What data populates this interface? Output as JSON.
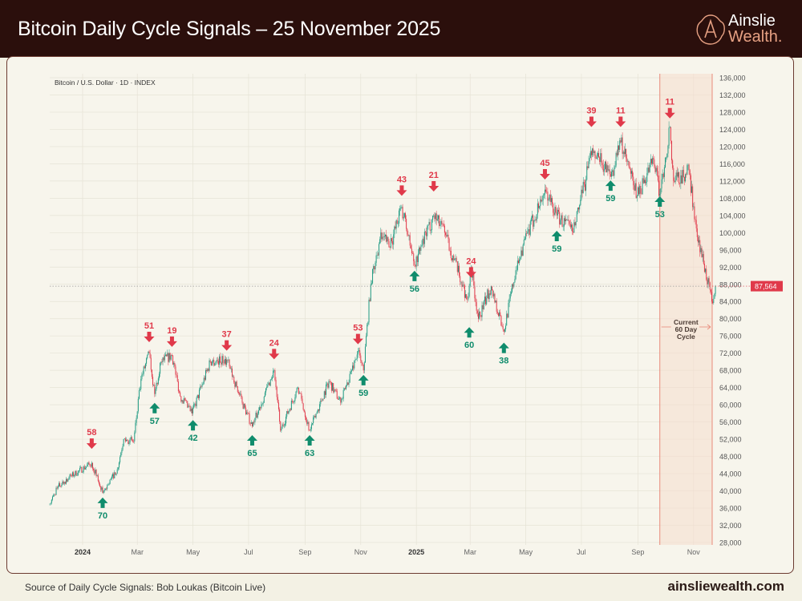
{
  "header": {
    "title": "Bitcoin Daily Cycle Signals – 25 November 2025"
  },
  "logo": {
    "line1": "Ainslie",
    "line2": "Wealth."
  },
  "footer": {
    "source": "Source of Daily Cycle Signals: Bob Loukas (Bitcoin Live)",
    "site": "ainsliewealth.com"
  },
  "chart_data": {
    "type": "candlestick",
    "symbol_label": "Bitcoin / U.S. Dollar · 1D · INDEX",
    "ylim": [
      28000,
      136000
    ],
    "y_ticks": [
      "136,000",
      "132,000",
      "128,000",
      "124,000",
      "120,000",
      "116,000",
      "112,000",
      "108,000",
      "104,000",
      "100,000",
      "96,000",
      "92,000",
      "88,000",
      "84,000",
      "80,000",
      "76,000",
      "72,000",
      "68,000",
      "64,000",
      "60,000",
      "56,000",
      "52,000",
      "48,000",
      "44,000",
      "40,000",
      "36,000",
      "32,000",
      "28,000"
    ],
    "x_ticks": [
      {
        "date": "2024-01-01",
        "label": "2024",
        "bold": true
      },
      {
        "date": "2024-03-01",
        "label": "Mar"
      },
      {
        "date": "2024-05-01",
        "label": "May"
      },
      {
        "date": "2024-07-01",
        "label": "Jul"
      },
      {
        "date": "2024-09-01",
        "label": "Sep"
      },
      {
        "date": "2024-11-01",
        "label": "Nov"
      },
      {
        "date": "2025-01-01",
        "label": "2025",
        "bold": true
      },
      {
        "date": "2025-03-01",
        "label": "Mar"
      },
      {
        "date": "2025-05-01",
        "label": "May"
      },
      {
        "date": "2025-07-01",
        "label": "Jul"
      },
      {
        "date": "2025-09-01",
        "label": "Sep"
      },
      {
        "date": "2025-11-01",
        "label": "Nov"
      }
    ],
    "x_range": [
      "2023-11-26",
      "2025-11-25"
    ],
    "grid": true,
    "colors": {
      "up": "#1f9a82",
      "down": "#e0394a",
      "signal_high": "#e0394a",
      "signal_low": "#0f8c6c",
      "shade": "#f5dccd"
    },
    "price_path": [
      [
        "2023-11-26",
        37000
      ],
      [
        "2023-12-05",
        41000
      ],
      [
        "2023-12-20",
        43500
      ],
      [
        "2024-01-11",
        46500
      ],
      [
        "2024-01-23",
        39500
      ],
      [
        "2024-02-08",
        45000
      ],
      [
        "2024-02-15",
        52000
      ],
      [
        "2024-02-26",
        51500
      ],
      [
        "2024-03-05",
        66000
      ],
      [
        "2024-03-14",
        72000
      ],
      [
        "2024-03-20",
        62500
      ],
      [
        "2024-03-27",
        70000
      ],
      [
        "2024-04-08",
        71500
      ],
      [
        "2024-04-17",
        62000
      ],
      [
        "2024-04-30",
        58000
      ],
      [
        "2024-05-20",
        70000
      ],
      [
        "2024-06-07",
        70500
      ],
      [
        "2024-06-24",
        60500
      ],
      [
        "2024-07-05",
        55000
      ],
      [
        "2024-07-29",
        68000
      ],
      [
        "2024-08-05",
        54000
      ],
      [
        "2024-08-24",
        64000
      ],
      [
        "2024-09-06",
        54000
      ],
      [
        "2024-09-27",
        65500
      ],
      [
        "2024-10-10",
        60500
      ],
      [
        "2024-10-29",
        72500
      ],
      [
        "2024-11-04",
        68000
      ],
      [
        "2024-11-12",
        88000
      ],
      [
        "2024-11-22",
        98500
      ],
      [
        "2024-12-05",
        98000
      ],
      [
        "2024-12-16",
        106000
      ],
      [
        "2024-12-30",
        92500
      ],
      [
        "2025-01-20",
        104000
      ],
      [
        "2025-02-01",
        100000
      ],
      [
        "2025-02-26",
        84500
      ],
      [
        "2025-03-02",
        92000
      ],
      [
        "2025-03-10",
        80000
      ],
      [
        "2025-03-24",
        87500
      ],
      [
        "2025-04-07",
        77000
      ],
      [
        "2025-04-22",
        93500
      ],
      [
        "2025-05-22",
        110000
      ],
      [
        "2025-06-04",
        104000
      ],
      [
        "2025-06-22",
        100000
      ],
      [
        "2025-07-12",
        118000
      ],
      [
        "2025-07-20",
        117500
      ],
      [
        "2025-08-02",
        113000
      ],
      [
        "2025-08-13",
        121000
      ],
      [
        "2025-08-31",
        108500
      ],
      [
        "2025-09-18",
        117000
      ],
      [
        "2025-09-25",
        109000
      ],
      [
        "2025-10-06",
        124500
      ],
      [
        "2025-10-10",
        112000
      ],
      [
        "2025-10-27",
        114500
      ],
      [
        "2025-11-04",
        101000
      ],
      [
        "2025-11-21",
        84000
      ],
      [
        "2025-11-25",
        87564
      ]
    ],
    "last_price": 87564,
    "last_price_label": "87,564",
    "signals": [
      {
        "type": "high",
        "label": "58",
        "date": "2024-01-11",
        "price": 49200
      },
      {
        "type": "low",
        "label": "70",
        "date": "2024-01-23",
        "price": 39000
      },
      {
        "type": "high",
        "label": "51",
        "date": "2024-03-14",
        "price": 74000
      },
      {
        "type": "low",
        "label": "57",
        "date": "2024-03-20",
        "price": 61000
      },
      {
        "type": "high",
        "label": "19",
        "date": "2024-04-08",
        "price": 72900
      },
      {
        "type": "low",
        "label": "42",
        "date": "2024-05-01",
        "price": 57000
      },
      {
        "type": "high",
        "label": "37",
        "date": "2024-06-07",
        "price": 72000
      },
      {
        "type": "low",
        "label": "65",
        "date": "2024-07-05",
        "price": 53500
      },
      {
        "type": "high",
        "label": "24",
        "date": "2024-07-29",
        "price": 70000
      },
      {
        "type": "low",
        "label": "63",
        "date": "2024-09-06",
        "price": 53500
      },
      {
        "type": "high",
        "label": "53",
        "date": "2024-10-29",
        "price": 73500
      },
      {
        "type": "low",
        "label": "59",
        "date": "2024-11-04",
        "price": 67500
      },
      {
        "type": "high",
        "label": "43",
        "date": "2024-12-16",
        "price": 108000
      },
      {
        "type": "low",
        "label": "56",
        "date": "2024-12-30",
        "price": 91700
      },
      {
        "type": "high",
        "label": "21",
        "date": "2025-01-20",
        "price": 109000
      },
      {
        "type": "low",
        "label": "60",
        "date": "2025-02-28",
        "price": 78600
      },
      {
        "type": "high",
        "label": "24",
        "date": "2025-03-02",
        "price": 89000
      },
      {
        "type": "low",
        "label": "38",
        "date": "2025-04-07",
        "price": 75000
      },
      {
        "type": "high",
        "label": "45",
        "date": "2025-05-22",
        "price": 111800
      },
      {
        "type": "low",
        "label": "59",
        "date": "2025-06-04",
        "price": 101000
      },
      {
        "type": "high",
        "label": "39",
        "date": "2025-07-12",
        "price": 124000
      },
      {
        "type": "low",
        "label": "59",
        "date": "2025-08-02",
        "price": 112700
      },
      {
        "type": "high",
        "label": "11",
        "date": "2025-08-13",
        "price": 124000
      },
      {
        "type": "low",
        "label": "53",
        "date": "2025-09-25",
        "price": 109000
      },
      {
        "type": "high",
        "label": "11",
        "date": "2025-10-06",
        "price": 126000
      }
    ],
    "current_cycle": {
      "start": "2025-09-25",
      "end": "2025-11-25",
      "label_lines": [
        "Current",
        "60 Day",
        "Cycle"
      ]
    }
  }
}
